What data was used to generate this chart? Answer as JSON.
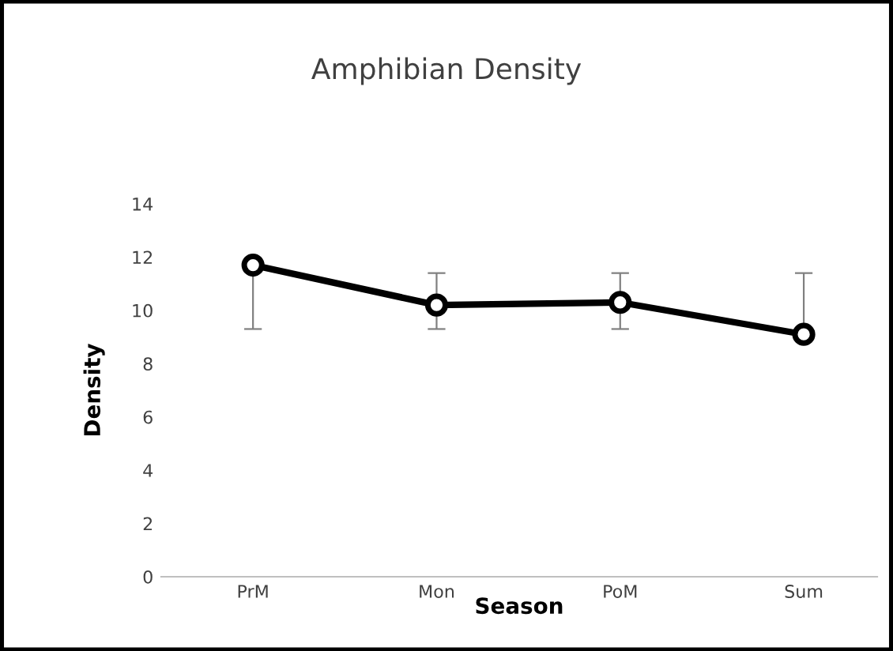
{
  "chart_data": {
    "type": "line",
    "title": "Amphibian Density",
    "xlabel": "Season",
    "ylabel": "Density",
    "categories": [
      "PrM",
      "Mon",
      "PoM",
      "Sum"
    ],
    "series": [
      {
        "color": "#000000",
        "values": [
          11.7,
          10.2,
          10.3,
          9.1
        ],
        "errors": [
          [
            9.3,
            11.7
          ],
          [
            9.3,
            11.4
          ],
          [
            9.3,
            11.4
          ],
          [
            9.1,
            11.4
          ]
        ]
      }
    ],
    "ylim": [
      0,
      14
    ],
    "yticks": [
      0,
      2,
      4,
      6,
      8,
      10,
      12,
      14
    ],
    "grid": false,
    "legend": false,
    "marker": "circle",
    "line_style": "solid"
  }
}
